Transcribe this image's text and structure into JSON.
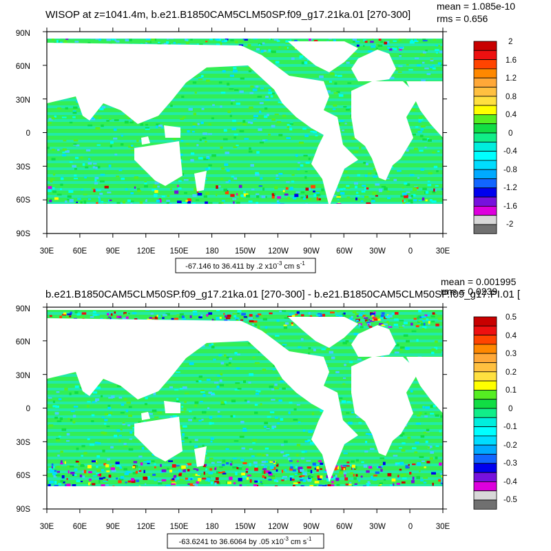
{
  "colors": {
    "ocean_bg": "#33ee55",
    "land": "#ffffff",
    "frame": "#000000",
    "mid_teal": "#22eaa8",
    "cyan": "#00ffee",
    "light_blue": "#44ccff"
  },
  "colorbar_palette": [
    "#c80000",
    "#ee1010",
    "#ff4400",
    "#ff8800",
    "#ffa838",
    "#ffc040",
    "#ffe040",
    "#ffff00",
    "#55ee22",
    "#11dd44",
    "#11ee88",
    "#00eedd",
    "#00ffff",
    "#00ddff",
    "#00aaff",
    "#1166ff",
    "#0000ee",
    "#7711dd",
    "#dd00dd",
    "#d8d8d8",
    "#707070"
  ],
  "panels": [
    {
      "title": "WISOP at z=1041.4m, b.e21.B1850CAM5CLM50SP.f09_g17.21ka.01 [270-300]",
      "mean": "mean = 1.085e-10",
      "rms": "rms = 0.656",
      "lat_ticks": [
        "90N",
        "60N",
        "30N",
        "0",
        "30S",
        "60S",
        "90S"
      ],
      "lon_ticks": [
        "30E",
        "60E",
        "90E",
        "120E",
        "150E",
        "180",
        "150W",
        "120W",
        "90W",
        "60W",
        "30W",
        "0",
        "30E"
      ],
      "colorbar_labels": [
        "2",
        "1.6",
        "1.2",
        "0.8",
        "0.4",
        "0",
        "-0.4",
        "-0.8",
        "-1.2",
        "-1.6",
        "-2"
      ],
      "range_note": {
        "text": "-67.146 to 36.411 by .2 x10",
        "exp": "-3",
        "unit": " cm s",
        "unit_exp": "-1"
      },
      "noise_level": 0.3
    },
    {
      "title": "b.e21.B1850CAM5CLM50SP.f09_g17.21ka.01 [270-300] - b.e21.B1850CAM5CLM50SP.f09_g17.PI.01 [",
      "mean": "mean = 0.001995",
      "rms": "rms = 0.0239",
      "lat_ticks": [
        "90N",
        "60N",
        "30N",
        "0",
        "30S",
        "60S",
        "90S"
      ],
      "lon_ticks": [
        "30E",
        "60E",
        "90E",
        "120E",
        "150E",
        "180",
        "150W",
        "120W",
        "90W",
        "60W",
        "30W",
        "0",
        "30E"
      ],
      "colorbar_labels": [
        "0.5",
        "0.4",
        "0.3",
        "0.2",
        "0.1",
        "0",
        "-0.1",
        "-0.2",
        "-0.3",
        "-0.4",
        "-0.5"
      ],
      "range_note": {
        "text": "-63.6241 to 36.6064 by .05 x10",
        "exp": "-3",
        "unit": " cm s",
        "unit_exp": "-1"
      },
      "noise_level": 0.7
    }
  ]
}
